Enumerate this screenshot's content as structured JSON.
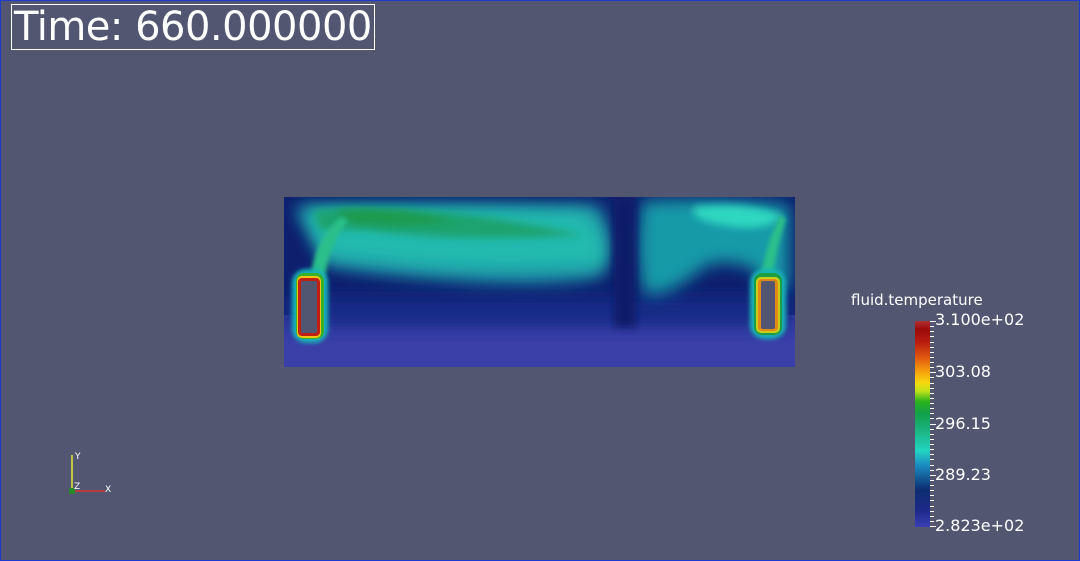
{
  "time_annotation": "Time: 660.000000",
  "legend": {
    "title": "fluid.temperature",
    "labels": [
      "3.100e+02",
      "303.08",
      "296.15",
      "289.23",
      "2.823e+02"
    ]
  },
  "axes": {
    "x": "X",
    "y": "Y",
    "z": "Z"
  },
  "colors": {
    "background": "#525671",
    "domain_base": "#3b3fa8"
  }
}
